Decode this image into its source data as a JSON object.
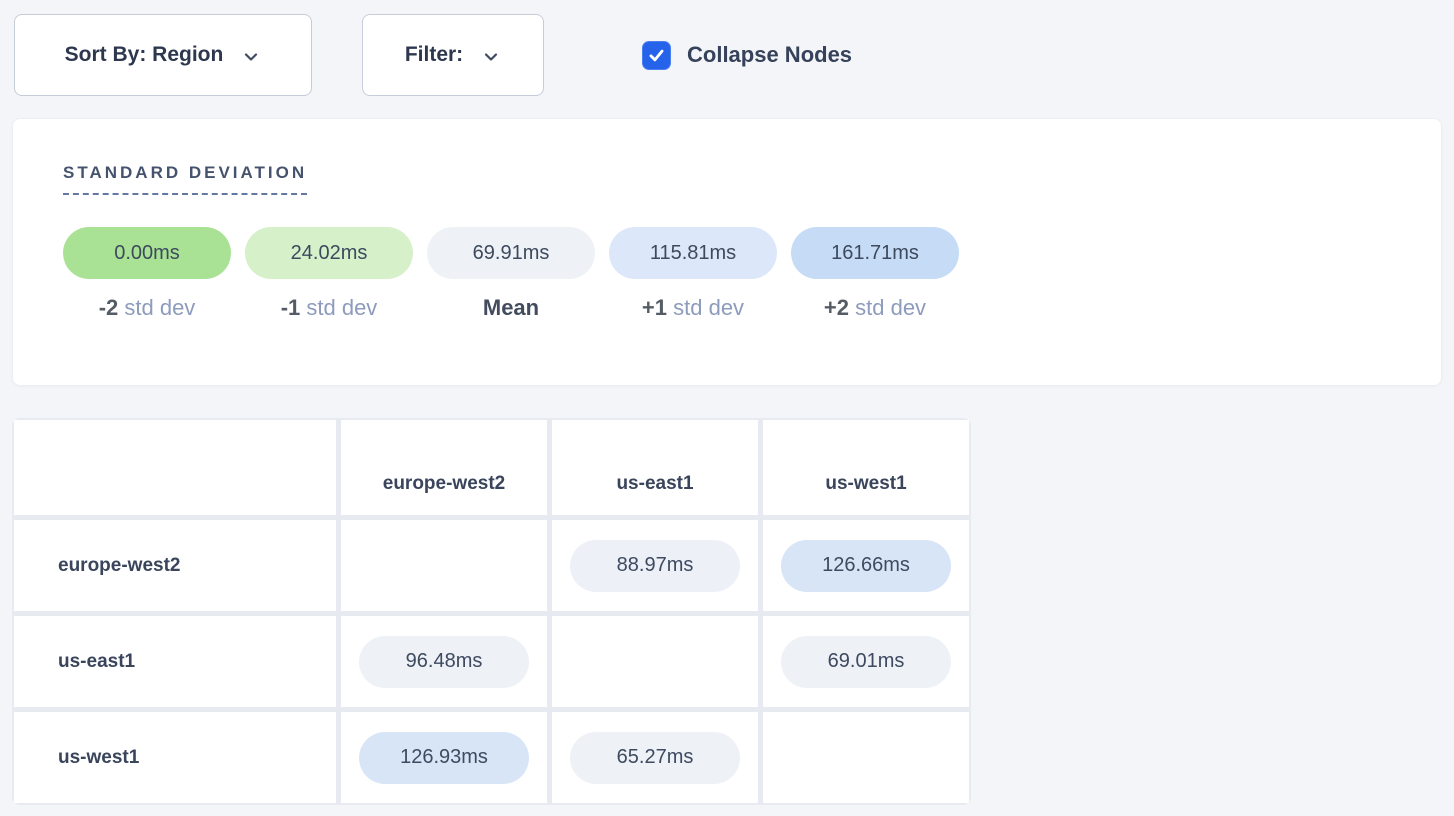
{
  "toolbar": {
    "sort_by_label": "Sort By: Region",
    "filter_label": "Filter:",
    "collapse_label": "Collapse Nodes",
    "collapse_checked": true
  },
  "legend": {
    "title": "STANDARD DEVIATION",
    "items": [
      {
        "value": "0.00ms",
        "color": "#a9e295",
        "label_num": "-2",
        "label_text": "std dev",
        "muted": true
      },
      {
        "value": "24.02ms",
        "color": "#d6f0ca",
        "label_num": "-1",
        "label_text": "std dev",
        "muted": true
      },
      {
        "value": "69.91ms",
        "color": "#eef1f6",
        "label_num": "",
        "label_text": "Mean",
        "muted": false
      },
      {
        "value": "115.81ms",
        "color": "#dce8f9",
        "label_num": "+1",
        "label_text": "std dev",
        "muted": true
      },
      {
        "value": "161.71ms",
        "color": "#c5dbf6",
        "label_num": "+2",
        "label_text": "std dev",
        "muted": true
      }
    ]
  },
  "matrix": {
    "columns": [
      "europe-west2",
      "us-east1",
      "us-west1"
    ],
    "rows": [
      {
        "label": "europe-west2",
        "cells": [
          null,
          {
            "value": "88.97ms",
            "color": "#edf1f7"
          },
          {
            "value": "126.66ms",
            "color": "#d7e5f7"
          }
        ]
      },
      {
        "label": "us-east1",
        "cells": [
          {
            "value": "96.48ms",
            "color": "#eef1f6"
          },
          null,
          {
            "value": "69.01ms",
            "color": "#eef1f6"
          }
        ]
      },
      {
        "label": "us-west1",
        "cells": [
          {
            "value": "126.93ms",
            "color": "#d7e5f7"
          },
          {
            "value": "65.27ms",
            "color": "#eef1f6"
          },
          null
        ]
      }
    ]
  },
  "colors": {
    "page_bg": "#f3f5f9",
    "accent_blue": "#2563eb",
    "text_dark": "#36415a",
    "muted_label": "#8d9bbc",
    "grid": "#e7eaf1"
  }
}
